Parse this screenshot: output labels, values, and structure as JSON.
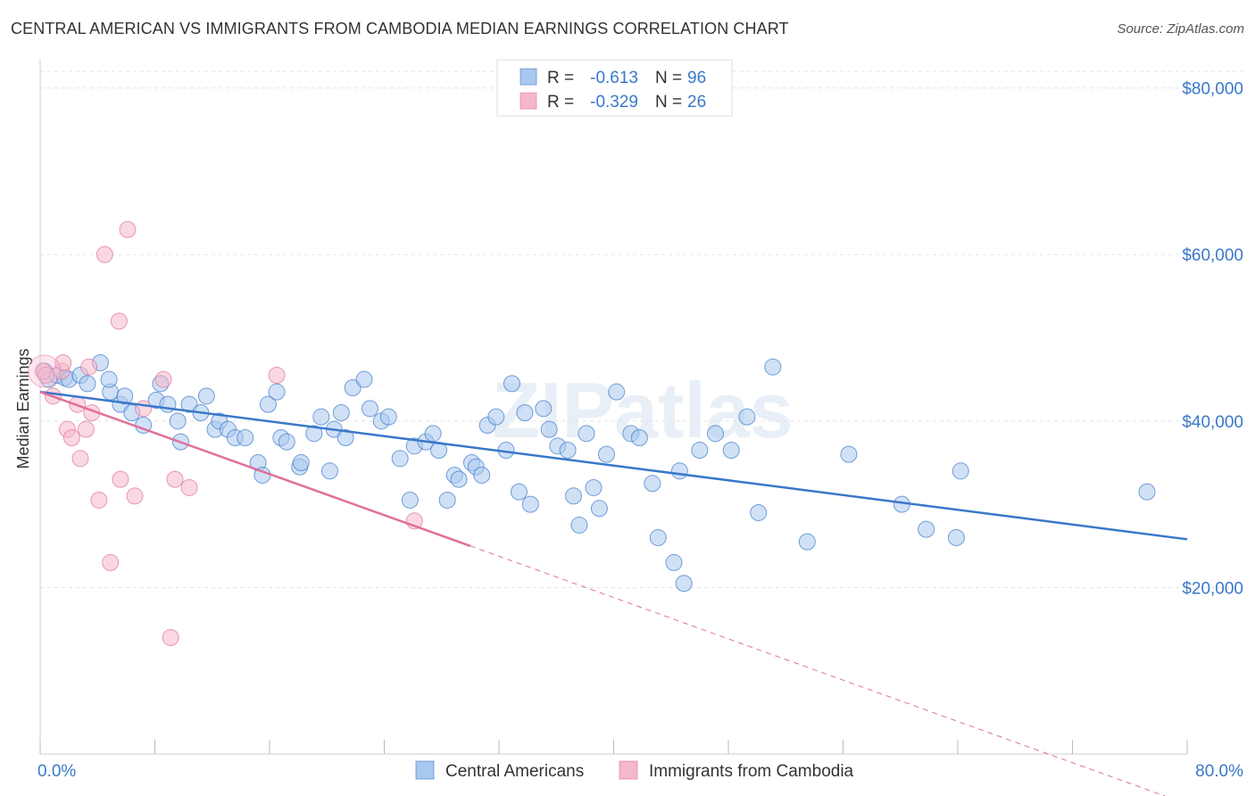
{
  "title": "CENTRAL AMERICAN VS IMMIGRANTS FROM CAMBODIA MEDIAN EARNINGS CORRELATION CHART",
  "source": "Source: ZipAtlas.com",
  "watermark": "ZIPatlas",
  "colors": {
    "blue": "#3a78c9",
    "blue_fill": "#a9c8ef",
    "pink": "#e0709a",
    "pink_fill": "#f5b8cb"
  },
  "chart_data": {
    "type": "scatter",
    "title": "CENTRAL AMERICAN VS IMMIGRANTS FROM CAMBODIA MEDIAN EARNINGS CORRELATION CHART",
    "xlabel": "",
    "ylabel": "Median Earnings",
    "xlim": [
      0,
      80
    ],
    "ylim": [
      0,
      82000
    ],
    "x_tick_labels": [
      "0.0%",
      "80.0%"
    ],
    "y_ticks": [
      20000,
      40000,
      60000,
      80000
    ],
    "y_tick_labels": [
      "$20,000",
      "$40,000",
      "$60,000",
      "$80,000"
    ],
    "grid": true,
    "legend_top": [
      {
        "r_label": "R =",
        "r": "-0.613",
        "n_label": "N =",
        "n": "96"
      },
      {
        "r_label": "R =",
        "r": "-0.329",
        "n_label": "N =",
        "n": "26"
      }
    ],
    "series": [
      {
        "name": "Central Americans",
        "color": "#3a78c9",
        "trend": {
          "x0": 0,
          "y0": 43500,
          "x1": 80,
          "y1": 25800
        },
        "points": [
          [
            0.3,
            46000
          ],
          [
            0.6,
            45000
          ],
          [
            1.2,
            45500
          ],
          [
            1.7,
            45200
          ],
          [
            2.0,
            45000
          ],
          [
            2.8,
            45500
          ],
          [
            3.3,
            44500
          ],
          [
            4.2,
            47000
          ],
          [
            4.9,
            43500
          ],
          [
            4.8,
            45000
          ],
          [
            5.6,
            42000
          ],
          [
            5.9,
            43000
          ],
          [
            6.4,
            41000
          ],
          [
            7.2,
            39500
          ],
          [
            8.1,
            42500
          ],
          [
            8.4,
            44500
          ],
          [
            8.9,
            42000
          ],
          [
            9.6,
            40000
          ],
          [
            9.8,
            37500
          ],
          [
            10.4,
            42000
          ],
          [
            11.2,
            41000
          ],
          [
            11.6,
            43000
          ],
          [
            12.2,
            39000
          ],
          [
            12.5,
            40000
          ],
          [
            13.1,
            39000
          ],
          [
            13.6,
            38000
          ],
          [
            14.3,
            38000
          ],
          [
            15.2,
            35000
          ],
          [
            15.5,
            33500
          ],
          [
            15.9,
            42000
          ],
          [
            16.5,
            43500
          ],
          [
            16.8,
            38000
          ],
          [
            17.2,
            37500
          ],
          [
            18.1,
            34500
          ],
          [
            18.2,
            35000
          ],
          [
            19.1,
            38500
          ],
          [
            19.6,
            40500
          ],
          [
            20.2,
            34000
          ],
          [
            20.5,
            39000
          ],
          [
            21.0,
            41000
          ],
          [
            21.3,
            38000
          ],
          [
            21.8,
            44000
          ],
          [
            22.6,
            45000
          ],
          [
            23.0,
            41500
          ],
          [
            23.8,
            40000
          ],
          [
            24.3,
            40500
          ],
          [
            25.1,
            35500
          ],
          [
            25.8,
            30500
          ],
          [
            26.1,
            37000
          ],
          [
            26.9,
            37500
          ],
          [
            27.4,
            38500
          ],
          [
            27.8,
            36500
          ],
          [
            28.4,
            30500
          ],
          [
            28.9,
            33500
          ],
          [
            29.2,
            33000
          ],
          [
            30.1,
            35000
          ],
          [
            30.4,
            34500
          ],
          [
            30.8,
            33500
          ],
          [
            31.2,
            39500
          ],
          [
            31.8,
            40500
          ],
          [
            32.5,
            36500
          ],
          [
            32.9,
            44500
          ],
          [
            33.4,
            31500
          ],
          [
            33.8,
            41000
          ],
          [
            34.2,
            30000
          ],
          [
            35.1,
            41500
          ],
          [
            35.5,
            39000
          ],
          [
            36.1,
            37000
          ],
          [
            36.8,
            36500
          ],
          [
            37.2,
            31000
          ],
          [
            37.6,
            27500
          ],
          [
            38.1,
            38500
          ],
          [
            38.6,
            32000
          ],
          [
            39.0,
            29500
          ],
          [
            39.5,
            36000
          ],
          [
            40.2,
            43500
          ],
          [
            41.2,
            38500
          ],
          [
            41.8,
            38000
          ],
          [
            42.7,
            32500
          ],
          [
            43.1,
            26000
          ],
          [
            44.2,
            23000
          ],
          [
            44.6,
            34000
          ],
          [
            44.9,
            20500
          ],
          [
            46.0,
            36500
          ],
          [
            47.1,
            38500
          ],
          [
            48.2,
            36500
          ],
          [
            49.3,
            40500
          ],
          [
            50.1,
            29000
          ],
          [
            51.1,
            46500
          ],
          [
            53.5,
            25500
          ],
          [
            56.4,
            36000
          ],
          [
            60.1,
            30000
          ],
          [
            61.8,
            27000
          ],
          [
            64.2,
            34000
          ],
          [
            63.9,
            26000
          ],
          [
            77.2,
            31500
          ]
        ]
      },
      {
        "name": "Immigrants from Cambodia",
        "color": "#e0709a",
        "trend": {
          "x0": 0,
          "y0": 43500,
          "x1": 30,
          "y1": 25000
        },
        "trend_dash": {
          "x0": 30,
          "y0": 25000,
          "x1": 80,
          "y1": -6000
        },
        "points": [
          [
            0.2,
            46000
          ],
          [
            0.4,
            45500
          ],
          [
            0.9,
            43000
          ],
          [
            1.5,
            46000
          ],
          [
            1.6,
            47000
          ],
          [
            1.9,
            39000
          ],
          [
            2.2,
            38000
          ],
          [
            2.6,
            42000
          ],
          [
            2.8,
            35500
          ],
          [
            3.2,
            39000
          ],
          [
            3.4,
            46500
          ],
          [
            3.6,
            41000
          ],
          [
            4.1,
            30500
          ],
          [
            4.5,
            60000
          ],
          [
            4.9,
            23000
          ],
          [
            5.5,
            52000
          ],
          [
            5.6,
            33000
          ],
          [
            6.1,
            63000
          ],
          [
            6.6,
            31000
          ],
          [
            7.2,
            41500
          ],
          [
            8.6,
            45000
          ],
          [
            9.1,
            14000
          ],
          [
            9.4,
            33000
          ],
          [
            10.4,
            32000
          ],
          [
            16.5,
            45500
          ],
          [
            26.1,
            28000
          ]
        ]
      }
    ]
  }
}
